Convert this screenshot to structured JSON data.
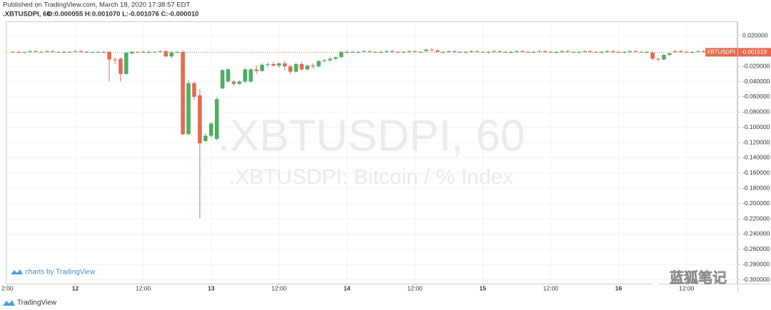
{
  "published": "Published on TradingView.com, March 18, 2020 17:38:57 EDT",
  "chart_data": {
    "type": "candlestick",
    "symbol": ".XBTUSDPI, 60",
    "legend": "O:0.000055 H:0.001070 L:-0.001076 C:-0.000010",
    "watermark": ".XBTUSDPI, 60",
    "watermark_subtitle": ".XBTUSDPI: Bitcoin / % Index",
    "up_color": "#4caf62",
    "down_color": "#e5694f",
    "grid": true,
    "xlim": [
      -0.3,
      129
    ],
    "xticks": [
      {
        "value": 0,
        "label": "2:00"
      },
      {
        "value": 12,
        "label": "12"
      },
      {
        "value": 24,
        "label": "12:00"
      },
      {
        "value": 36,
        "label": "13"
      },
      {
        "value": 48,
        "label": "12:00"
      },
      {
        "value": 60,
        "label": "14"
      },
      {
        "value": 72,
        "label": "12:00"
      },
      {
        "value": 84,
        "label": "15"
      },
      {
        "value": 96,
        "label": "12:00"
      },
      {
        "value": 108,
        "label": "16"
      },
      {
        "value": 120,
        "label": "12:00"
      }
    ],
    "ylim": [
      -0.305,
      0.039
    ],
    "yticks": [
      {
        "value": 0.02,
        "label": "0.020000"
      },
      {
        "value": -0.02,
        "label": "-0.020000"
      },
      {
        "value": -0.04,
        "label": "-0.040000"
      },
      {
        "value": -0.06,
        "label": "-0.060000"
      },
      {
        "value": -0.08,
        "label": "-0.080000"
      },
      {
        "value": -0.1,
        "label": "-0.100000"
      },
      {
        "value": -0.12,
        "label": "-0.120000"
      },
      {
        "value": -0.14,
        "label": "-0.140000"
      },
      {
        "value": -0.16,
        "label": "-0.160000"
      },
      {
        "value": -0.18,
        "label": "-0.180000"
      },
      {
        "value": -0.2,
        "label": "-0.200000"
      },
      {
        "value": -0.22,
        "label": "-0.220000"
      },
      {
        "value": -0.24,
        "label": "-0.240000"
      },
      {
        "value": -0.26,
        "label": "-0.260000"
      },
      {
        "value": -0.28,
        "label": "-0.280000"
      },
      {
        "value": -0.3,
        "label": "-0.300000"
      }
    ],
    "last_price": {
      "name": "XBTUSDPI",
      "value": -0.001519,
      "color": "#e5694f"
    },
    "x": [
      1,
      2,
      3,
      4,
      5,
      6,
      7,
      8,
      9,
      10,
      11,
      12,
      13,
      14,
      15,
      16,
      17,
      18,
      19,
      20,
      21,
      22,
      23,
      24,
      25,
      26,
      27,
      28,
      29,
      30,
      31,
      32,
      33,
      34,
      35,
      36,
      37,
      38,
      39,
      40,
      41,
      42,
      43,
      44,
      45,
      46,
      47,
      48,
      49,
      50,
      51,
      52,
      53,
      54,
      55,
      56,
      57,
      58,
      59,
      60,
      61,
      62,
      63,
      64,
      65,
      66,
      67,
      68,
      69,
      70,
      71,
      72,
      73,
      74,
      75,
      76,
      77,
      78,
      79,
      80,
      81,
      82,
      83,
      84,
      85,
      86,
      87,
      88,
      89,
      90,
      91,
      92,
      93,
      94,
      95,
      96,
      97,
      98,
      99,
      100,
      101,
      102,
      103,
      104,
      105,
      106,
      107,
      108,
      109,
      110,
      111,
      112,
      113,
      114,
      115,
      116,
      117,
      118,
      119,
      120,
      121,
      122,
      123,
      124,
      125,
      126,
      127,
      128
    ],
    "ohlc": [
      [
        -0.001,
        0,
        -0.002,
        -0.001
      ],
      [
        -0.001,
        0,
        -0.002,
        -0.002
      ],
      [
        -0.002,
        -0.001,
        -0.003,
        -0.001
      ],
      [
        -0.001,
        0.001,
        -0.002,
        0
      ],
      [
        0,
        0.001,
        -0.001,
        -0.001
      ],
      [
        -0.001,
        0,
        -0.002,
        -0.001
      ],
      [
        -0.001,
        0.001,
        -0.002,
        0
      ],
      [
        0,
        0.001,
        -0.001,
        -0.001
      ],
      [
        -0.001,
        0,
        -0.002,
        -0.002
      ],
      [
        -0.002,
        0,
        -0.003,
        -0.001
      ],
      [
        -0.001,
        0,
        -0.002,
        -0.001
      ],
      [
        -0.001,
        0.001,
        -0.001,
        0
      ],
      [
        0,
        0.001,
        -0.002,
        -0.001
      ],
      [
        -0.001,
        0,
        -0.002,
        -0.002
      ],
      [
        -0.002,
        -0.001,
        -0.003,
        -0.001
      ],
      [
        -0.001,
        0,
        -0.002,
        -0.001
      ],
      [
        -0.001,
        0,
        -0.003,
        -0.002
      ],
      [
        -0.001,
        0,
        -0.04,
        -0.011
      ],
      [
        -0.011,
        -0.008,
        -0.017,
        -0.012
      ],
      [
        -0.01,
        -0.008,
        -0.04,
        -0.03
      ],
      [
        -0.03,
        -0.001,
        -0.031,
        -0.002
      ],
      [
        -0.003,
        0,
        -0.004,
        -0.001
      ],
      [
        -0.001,
        0,
        -0.002,
        -0.001
      ],
      [
        -0.001,
        0.001,
        -0.002,
        -0.002
      ],
      [
        -0.002,
        0,
        -0.003,
        -0.001
      ],
      [
        -0.001,
        0,
        -0.002,
        -0.001
      ],
      [
        -0.001,
        0.001,
        -0.002,
        0
      ],
      [
        0,
        0.001,
        -0.008,
        -0.007
      ],
      [
        -0.007,
        0,
        -0.009,
        -0.002
      ],
      [
        -0.002,
        0,
        -0.003,
        -0.001
      ],
      [
        -0.001,
        0.001,
        -0.11,
        -0.109
      ],
      [
        -0.109,
        -0.038,
        -0.11,
        -0.042
      ],
      [
        -0.042,
        -0.04,
        -0.064,
        -0.06
      ],
      [
        -0.058,
        -0.05,
        -0.219,
        -0.121
      ],
      [
        -0.118,
        -0.108,
        -0.119,
        -0.111
      ],
      [
        -0.111,
        -0.093,
        -0.113,
        -0.095
      ],
      [
        -0.115,
        -0.06,
        -0.117,
        -0.063
      ],
      [
        -0.049,
        -0.024,
        -0.05,
        -0.025
      ],
      [
        -0.04,
        -0.022,
        -0.041,
        -0.024
      ],
      [
        -0.04,
        -0.038,
        -0.045,
        -0.043
      ],
      [
        -0.043,
        -0.038,
        -0.044,
        -0.04
      ],
      [
        -0.04,
        -0.022,
        -0.042,
        -0.024
      ],
      [
        -0.04,
        -0.022,
        -0.041,
        -0.024
      ],
      [
        -0.024,
        -0.019,
        -0.03,
        -0.026
      ],
      [
        -0.026,
        -0.016,
        -0.027,
        -0.018
      ],
      [
        -0.018,
        -0.015,
        -0.021,
        -0.017
      ],
      [
        -0.017,
        -0.014,
        -0.02,
        -0.019
      ],
      [
        -0.019,
        -0.015,
        -0.022,
        -0.016
      ],
      [
        -0.016,
        -0.013,
        -0.025,
        -0.02
      ],
      [
        -0.02,
        -0.018,
        -0.03,
        -0.027
      ],
      [
        -0.027,
        -0.015,
        -0.028,
        -0.017
      ],
      [
        -0.017,
        -0.014,
        -0.026,
        -0.024
      ],
      [
        -0.024,
        -0.018,
        -0.025,
        -0.019
      ],
      [
        -0.019,
        -0.016,
        -0.023,
        -0.02
      ],
      [
        -0.02,
        -0.012,
        -0.021,
        -0.013
      ],
      [
        -0.013,
        -0.01,
        -0.015,
        -0.012
      ],
      [
        -0.012,
        -0.008,
        -0.014,
        -0.01
      ],
      [
        -0.01,
        -0.007,
        -0.012,
        -0.008
      ],
      [
        -0.008,
        0,
        -0.009,
        -0.001
      ],
      [
        -0.001,
        0.001,
        -0.003,
        -0.002
      ],
      [
        -0.001,
        0,
        -0.002,
        -0.002
      ],
      [
        -0.002,
        0,
        -0.003,
        -0.001
      ],
      [
        -0.001,
        0.001,
        -0.002,
        0
      ],
      [
        0,
        0.001,
        -0.002,
        -0.001
      ],
      [
        -0.001,
        0,
        -0.002,
        -0.002
      ],
      [
        -0.002,
        0,
        -0.003,
        -0.001
      ],
      [
        -0.001,
        0.001,
        -0.002,
        0
      ],
      [
        0,
        0.001,
        -0.002,
        -0.001
      ],
      [
        -0.001,
        0,
        -0.002,
        -0.002
      ],
      [
        -0.002,
        0,
        -0.003,
        -0.001
      ],
      [
        -0.001,
        0.001,
        -0.002,
        0
      ],
      [
        0,
        0.001,
        -0.002,
        -0.001
      ],
      [
        -0.001,
        0,
        -0.002,
        -0.002
      ],
      [
        0,
        0.003,
        -0.001,
        0.002
      ],
      [
        0.002,
        0.004,
        0,
        0.001
      ],
      [
        0.001,
        0.002,
        -0.001,
        -0.001
      ],
      [
        -0.002,
        0,
        -0.003,
        -0.001
      ],
      [
        -0.001,
        0.001,
        -0.002,
        0
      ],
      [
        0,
        0.001,
        -0.002,
        -0.001
      ],
      [
        -0.001,
        0,
        -0.002,
        -0.002
      ],
      [
        -0.002,
        0,
        -0.003,
        -0.001
      ],
      [
        -0.001,
        0.001,
        -0.002,
        0
      ],
      [
        0,
        0.001,
        -0.002,
        -0.001
      ],
      [
        -0.001,
        0,
        -0.002,
        -0.002
      ],
      [
        -0.002,
        0,
        -0.003,
        -0.001
      ],
      [
        -0.001,
        0.001,
        -0.002,
        0
      ],
      [
        0,
        0.001,
        -0.002,
        -0.001
      ],
      [
        -0.001,
        0,
        -0.002,
        -0.002
      ],
      [
        -0.002,
        0,
        -0.003,
        -0.001
      ],
      [
        -0.001,
        0.001,
        -0.002,
        0
      ],
      [
        0,
        0.001,
        -0.002,
        -0.001
      ],
      [
        -0.001,
        0,
        -0.002,
        -0.002
      ],
      [
        -0.002,
        0,
        -0.003,
        -0.001
      ],
      [
        -0.001,
        0.001,
        -0.002,
        0
      ],
      [
        0,
        0.001,
        -0.002,
        -0.001
      ],
      [
        -0.001,
        0,
        -0.002,
        -0.002
      ],
      [
        -0.002,
        0,
        -0.003,
        -0.001
      ],
      [
        -0.001,
        0.001,
        -0.002,
        0
      ],
      [
        0,
        0.001,
        -0.002,
        -0.001
      ],
      [
        -0.001,
        0,
        -0.002,
        -0.002
      ],
      [
        -0.002,
        0,
        -0.003,
        -0.001
      ],
      [
        -0.001,
        0.001,
        -0.002,
        0
      ],
      [
        0,
        0.001,
        -0.002,
        -0.001
      ],
      [
        -0.001,
        0,
        -0.002,
        -0.002
      ],
      [
        -0.002,
        0,
        -0.003,
        -0.001
      ],
      [
        -0.001,
        0.001,
        -0.002,
        0
      ],
      [
        0,
        0.001,
        -0.002,
        -0.001
      ],
      [
        -0.001,
        0,
        -0.002,
        -0.002
      ],
      [
        -0.002,
        0,
        -0.003,
        -0.001
      ],
      [
        -0.001,
        0.001,
        -0.002,
        0
      ],
      [
        0,
        0.001,
        -0.002,
        -0.001
      ],
      [
        -0.001,
        0,
        -0.002,
        -0.002
      ],
      [
        -0.002,
        0,
        -0.003,
        -0.001
      ],
      [
        -0.002,
        0,
        -0.012,
        -0.01
      ],
      [
        -0.01,
        -0.009,
        -0.013,
        -0.011
      ],
      [
        -0.011,
        -0.004,
        -0.012,
        -0.005
      ],
      [
        -0.005,
        -0.002,
        -0.006,
        -0.003
      ],
      [
        -0.001,
        0.001,
        -0.002,
        0
      ],
      [
        0,
        0.001,
        -0.002,
        -0.001
      ],
      [
        -0.001,
        0,
        -0.002,
        -0.002
      ],
      [
        -0.002,
        0,
        -0.003,
        -0.001
      ],
      [
        -0.001,
        0.001,
        -0.002,
        0
      ],
      [
        0,
        0.001,
        -0.002,
        -0.001
      ],
      [
        -0.001,
        0,
        -0.002,
        -0.002
      ],
      [
        -0.002,
        0,
        -0.003,
        -0.001
      ],
      [
        -0.001,
        0.001,
        -0.002,
        0
      ],
      [
        0,
        0.001,
        -0.002,
        -0.001
      ],
      [
        5.5e-05,
        0.00107,
        -0.001076,
        -1e-05
      ]
    ]
  },
  "branding": {
    "chart_credit": "charts by TradingView",
    "footer": "TradingView",
    "wechat": "蓝狐笔记"
  }
}
